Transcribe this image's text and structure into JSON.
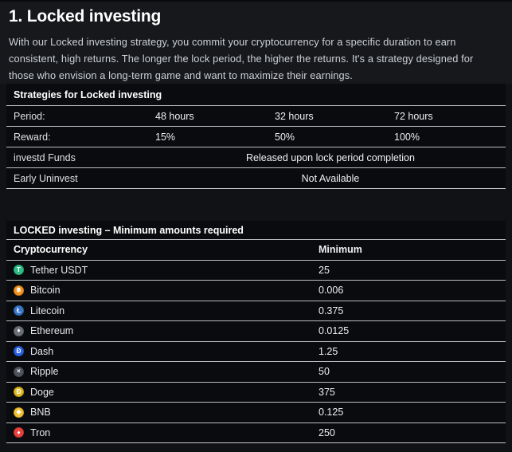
{
  "page": {
    "title": "1. Locked investing",
    "description": "With our Locked investing strategy, you commit your cryptocurrency for a specific duration to earn consistent, high returns. The longer the lock period, the higher the returns. It's a strategy designed for those who envision a long-term game and want to maximize their earnings."
  },
  "strategies_table": {
    "title": "Strategies for Locked investing",
    "rows": [
      {
        "label": "Period:",
        "values": [
          "48 hours",
          "32 hours",
          "72 hours"
        ]
      },
      {
        "label": "Reward:",
        "values": [
          "15%",
          "50%",
          "100%"
        ]
      },
      {
        "label": "investd Funds",
        "merged_value": "Released upon lock period completion"
      },
      {
        "label": "Early Uninvest",
        "merged_value": "Not Available"
      }
    ]
  },
  "minimums_table": {
    "title": "LOCKED investing – Minimum amounts required",
    "columns": [
      "Cryptocurrency",
      "Minimum"
    ],
    "rows": [
      {
        "name": "Tether USDT",
        "minimum": "25",
        "icon": "tether-icon",
        "color": "#2fbd86",
        "glyph": "T"
      },
      {
        "name": "Bitcoin",
        "minimum": "0.006",
        "icon": "bitcoin-icon",
        "color": "#f7931a",
        "glyph": "฿"
      },
      {
        "name": "Litecoin",
        "minimum": "0.375",
        "icon": "litecoin-icon",
        "color": "#3a76c9",
        "glyph": "Ł"
      },
      {
        "name": "Ethereum",
        "minimum": "0.0125",
        "icon": "ethereum-icon",
        "color": "#6d7177",
        "glyph": "♦"
      },
      {
        "name": "Dash",
        "minimum": "1.25",
        "icon": "dash-icon",
        "color": "#2a63e8",
        "glyph": "Ð"
      },
      {
        "name": "Ripple",
        "minimum": "50",
        "icon": "ripple-icon",
        "color": "#4e545b",
        "glyph": "×"
      },
      {
        "name": "Doge",
        "minimum": "375",
        "icon": "doge-icon",
        "color": "#e0ba22",
        "glyph": "Ð"
      },
      {
        "name": "BNB",
        "minimum": "0.125",
        "icon": "bnb-icon",
        "color": "#f1c333",
        "glyph": "◆"
      },
      {
        "name": "Tron",
        "minimum": "250",
        "icon": "tron-icon",
        "color": "#e8413d",
        "glyph": "♦"
      }
    ]
  }
}
